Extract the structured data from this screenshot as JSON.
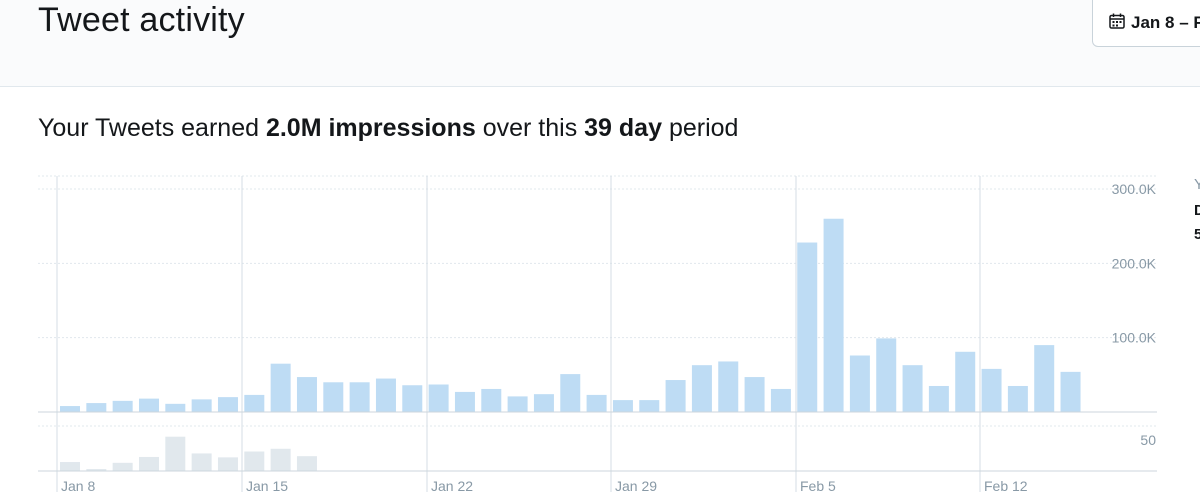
{
  "header": {
    "title": "Tweet activity",
    "date_range_label": "Jan 8 – F",
    "calendar_icon": "calendar-icon"
  },
  "summary": {
    "prefix": "Your Tweets earned",
    "impressions": "2.0M impressions",
    "middle": "over this",
    "days": "39 day",
    "suffix": "period"
  },
  "side_panel_peek": [
    "Y",
    "D",
    "5"
  ],
  "colors": {
    "impressions_bar": "#bedcf4",
    "engagements_bar": "#e1e8ed",
    "grid": "#e1e8ed",
    "axis_text": "#8899a6"
  },
  "chart_data": [
    {
      "type": "bar",
      "name": "impressions",
      "x_tick_labels": [
        "Jan 8",
        "Jan 15",
        "Jan 22",
        "Jan 29",
        "Feb 5",
        "Feb 12"
      ],
      "y_tick_labels": [
        "300.0K",
        "200.0K",
        "100.0K"
      ],
      "ylim": [
        0,
        300000
      ],
      "days": 39,
      "values": [
        8000,
        12000,
        15000,
        18000,
        11000,
        17000,
        20000,
        23000,
        65000,
        47000,
        40000,
        40000,
        45000,
        36000,
        37000,
        27000,
        31000,
        21000,
        24000,
        51000,
        23000,
        16000,
        16000,
        43000,
        63000,
        68000,
        47000,
        31000,
        228000,
        260000,
        76000,
        99000,
        63000,
        35000,
        81000,
        58000,
        35000,
        90000,
        54000
      ]
    },
    {
      "type": "bar",
      "name": "engagements",
      "y_tick_labels": [
        "50"
      ],
      "ylim": [
        0,
        100
      ],
      "values": [
        23,
        5,
        21,
        36,
        88,
        45,
        35,
        50,
        57,
        38,
        1,
        1,
        1,
        1,
        1,
        1,
        1,
        1,
        1,
        1,
        1,
        1,
        1,
        1,
        1,
        1,
        1,
        1,
        1,
        1,
        1,
        1,
        1,
        1,
        1,
        1,
        1,
        1,
        1
      ]
    }
  ]
}
